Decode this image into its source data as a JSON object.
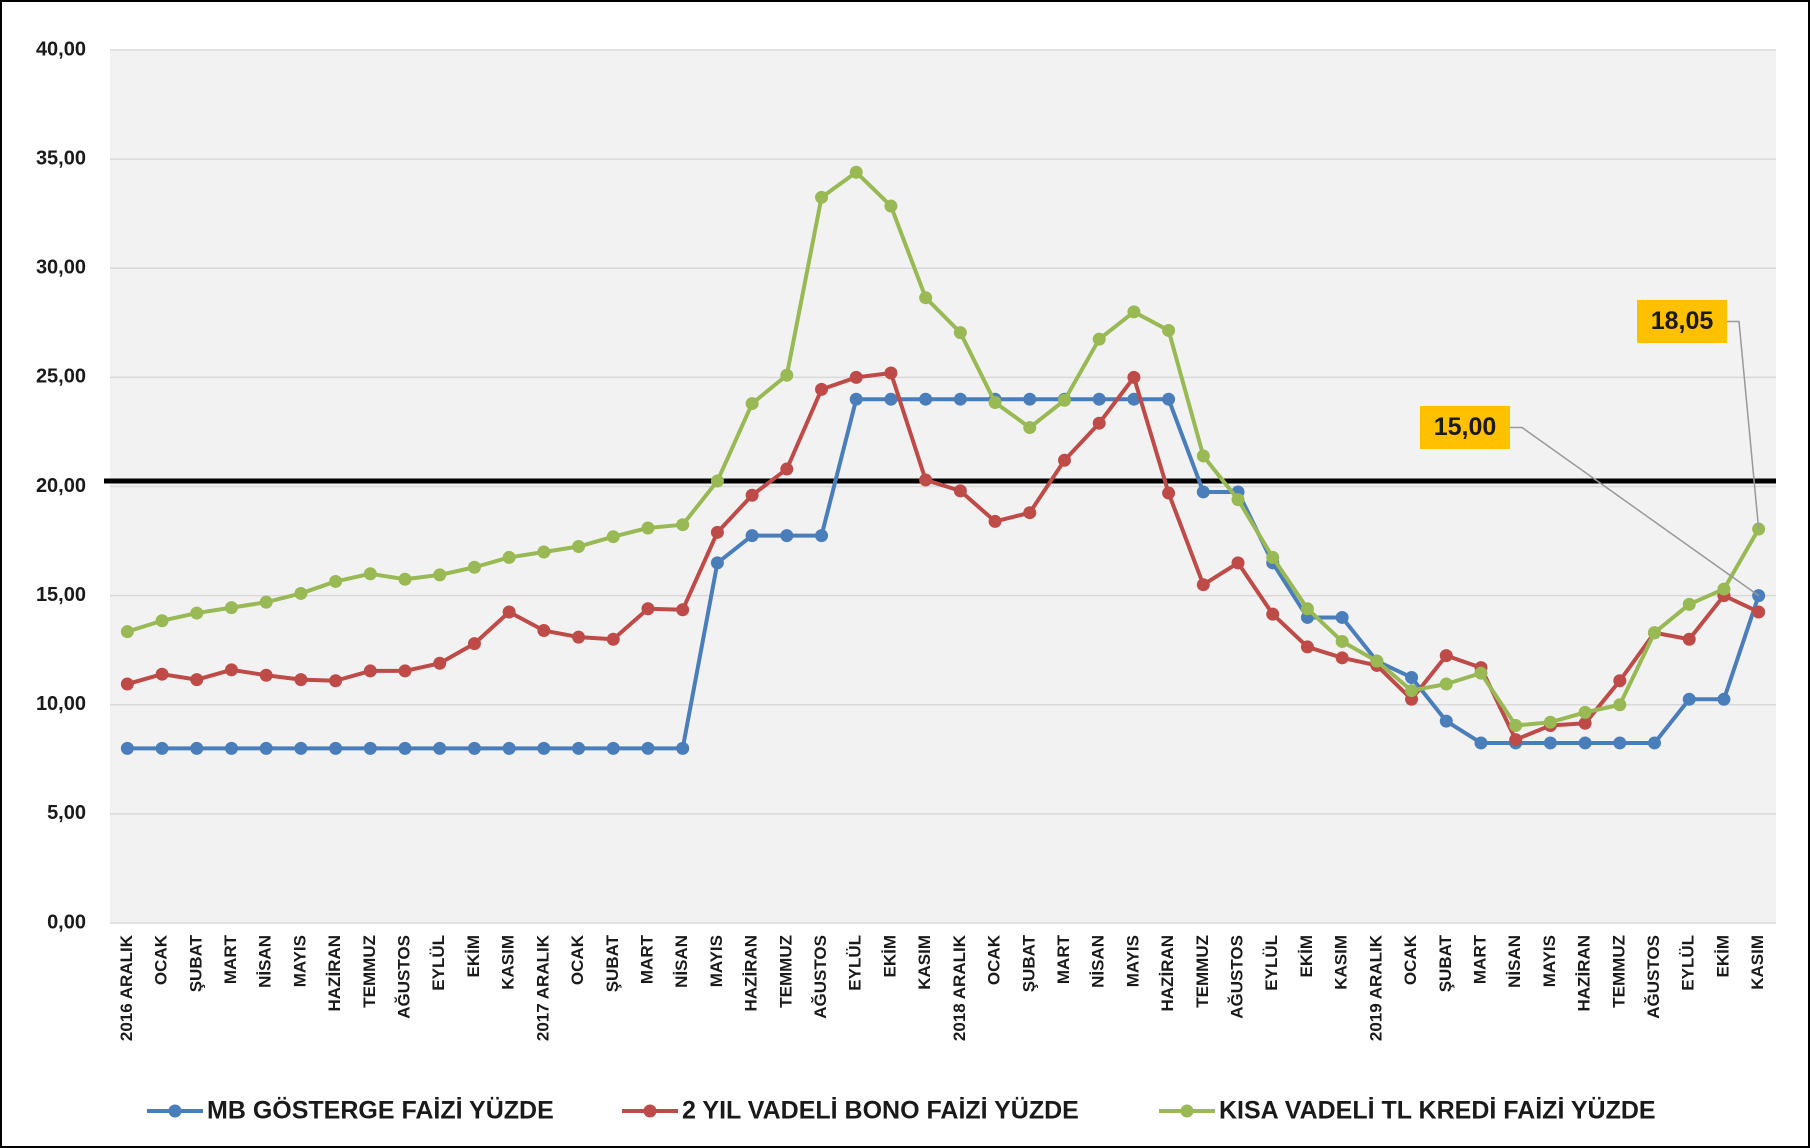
{
  "chart_data": {
    "type": "line",
    "categories": [
      "2016 ARALIK",
      "OCAK",
      "ŞUBAT",
      "MART",
      "NİSAN",
      "MAYIS",
      "HAZİRAN",
      "TEMMUZ",
      "AĞUSTOS",
      "EYLÜL",
      "EKİM",
      "KASIM",
      "2017 ARALIK",
      "OCAK",
      "ŞUBAT",
      "MART",
      "NİSAN",
      "MAYIS",
      "HAZİRAN",
      "TEMMUZ",
      "AĞUSTOS",
      "EYLÜL",
      "EKİM",
      "KASIM",
      "2018 ARALIK",
      "OCAK",
      "ŞUBAT",
      "MART",
      "NİSAN",
      "MAYIS",
      "HAZİRAN",
      "TEMMUZ",
      "AĞUSTOS",
      "EYLÜL",
      "EKİM",
      "KASIM",
      "2019 ARALIK",
      "OCAK",
      "ŞUBAT",
      "MART",
      "NİSAN",
      "MAYIS",
      "HAZİRAN",
      "TEMMUZ",
      "AĞUSTOS",
      "EYLÜL",
      "EKİM",
      "KASIM"
    ],
    "series": [
      {
        "name": "MB GÖSTERGE FAİZİ YÜZDE",
        "color": "#4a7ebb",
        "values": [
          8,
          8,
          8,
          8,
          8,
          8,
          8,
          8,
          8,
          8,
          8,
          8,
          8,
          8,
          8,
          8,
          8,
          16.5,
          17.75,
          17.75,
          17.75,
          24,
          24,
          24,
          24,
          24,
          24,
          24,
          24,
          24,
          24,
          19.75,
          19.75,
          16.5,
          14,
          14,
          12,
          11.25,
          9.25,
          8.25,
          8.25,
          8.25,
          8.25,
          8.25,
          8.25,
          10.25,
          10.25,
          15
        ],
        "annotation": {
          "index": 47,
          "label": "15,00"
        }
      },
      {
        "name": "2 YIL VADELİ BONO FAİZİ YÜZDE",
        "color": "#be4b48",
        "values": [
          10.95,
          11.4,
          11.15,
          11.6,
          11.35,
          11.15,
          11.1,
          11.55,
          11.55,
          11.9,
          12.8,
          14.25,
          13.4,
          13.1,
          13.0,
          14.4,
          14.35,
          17.9,
          19.6,
          20.8,
          24.45,
          25.0,
          25.2,
          20.3,
          19.8,
          18.4,
          18.8,
          21.2,
          22.9,
          25.0,
          19.7,
          15.5,
          16.5,
          14.15,
          12.65,
          12.15,
          11.8,
          10.25,
          12.25,
          11.7,
          8.4,
          9.05,
          9.15,
          11.1,
          13.3,
          13.0,
          15.0,
          14.25
        ]
      },
      {
        "name": "KISA VADELİ TL KREDİ FAİZİ YÜZDE",
        "color": "#98b954",
        "values": [
          13.35,
          13.85,
          14.2,
          14.45,
          14.7,
          15.1,
          15.65,
          16.0,
          15.75,
          15.95,
          16.3,
          16.75,
          17.0,
          17.25,
          17.7,
          18.1,
          18.25,
          20.25,
          23.8,
          25.1,
          33.25,
          34.4,
          32.85,
          28.65,
          27.05,
          23.85,
          22.7,
          23.95,
          26.75,
          28.0,
          27.15,
          21.4,
          19.4,
          16.75,
          14.4,
          12.9,
          12.0,
          10.65,
          10.95,
          11.45,
          9.05,
          9.2,
          9.65,
          10.0,
          13.3,
          14.6,
          15.3,
          18.05
        ],
        "annotation": {
          "index": 47,
          "label": "18,05"
        }
      }
    ],
    "reference_line": 20.25,
    "ylim": [
      0,
      40
    ],
    "yticks": [
      {
        "value": 0,
        "label": "0,00"
      },
      {
        "value": 5,
        "label": "5,00"
      },
      {
        "value": 10,
        "label": "10,00"
      },
      {
        "value": 15,
        "label": "15,00"
      },
      {
        "value": 20,
        "label": "20,00"
      },
      {
        "value": 25,
        "label": "25,00"
      },
      {
        "value": 30,
        "label": "30,00"
      },
      {
        "value": 35,
        "label": "35,00"
      },
      {
        "value": 40,
        "label": "40,00"
      }
    ],
    "grid": true,
    "legend": "bottom"
  }
}
